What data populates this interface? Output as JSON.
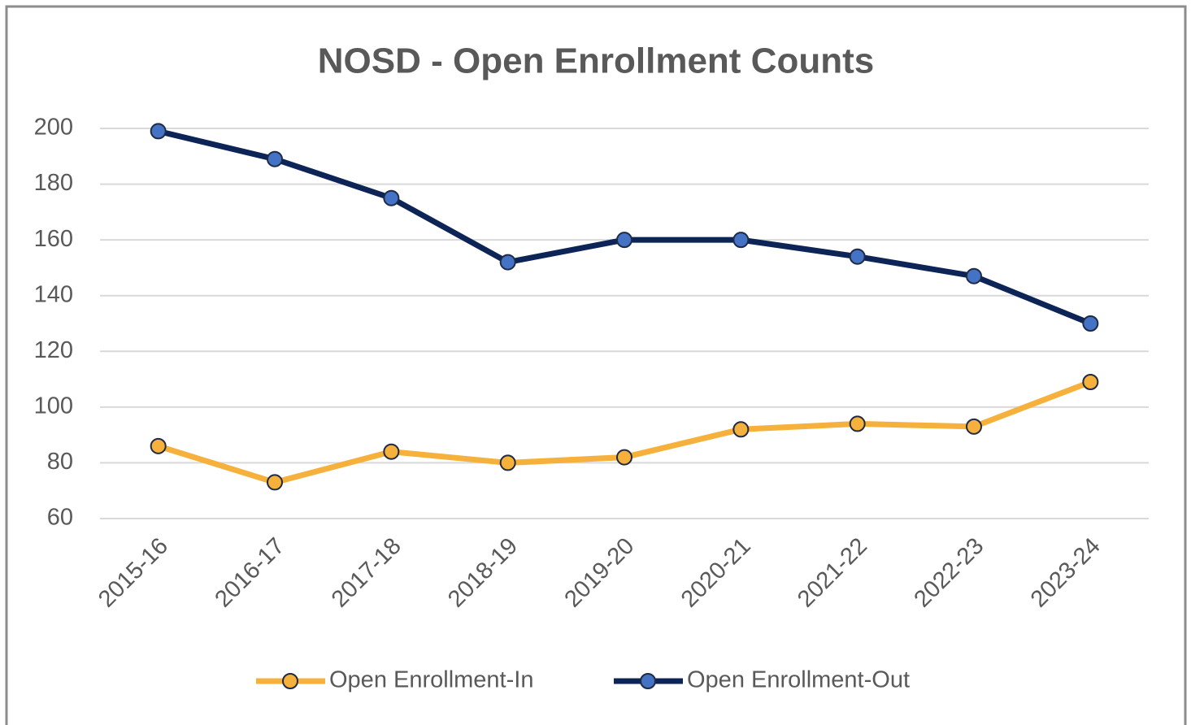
{
  "chart_data": {
    "type": "line",
    "title": "NOSD - Open Enrollment Counts",
    "categories": [
      "2015-16",
      "2016-17",
      "2017-18",
      "2018-19",
      "2019-20",
      "2020-21",
      "2021-22",
      "2022-23",
      "2023-24"
    ],
    "series": [
      {
        "name": "Open Enrollment-In",
        "color": "#f5b13c",
        "marker_color": "#f5b13c",
        "values": [
          86,
          73,
          84,
          80,
          82,
          92,
          94,
          93,
          109
        ]
      },
      {
        "name": "Open Enrollment-Out",
        "color": "#0d2456",
        "marker_color": "#4472c4",
        "values": [
          199,
          189,
          175,
          152,
          160,
          160,
          154,
          147,
          130
        ]
      }
    ],
    "ylim": [
      60,
      200
    ],
    "yticks": [
      60,
      80,
      100,
      120,
      140,
      160,
      180,
      200
    ],
    "grid": true,
    "legend": "bottom"
  }
}
